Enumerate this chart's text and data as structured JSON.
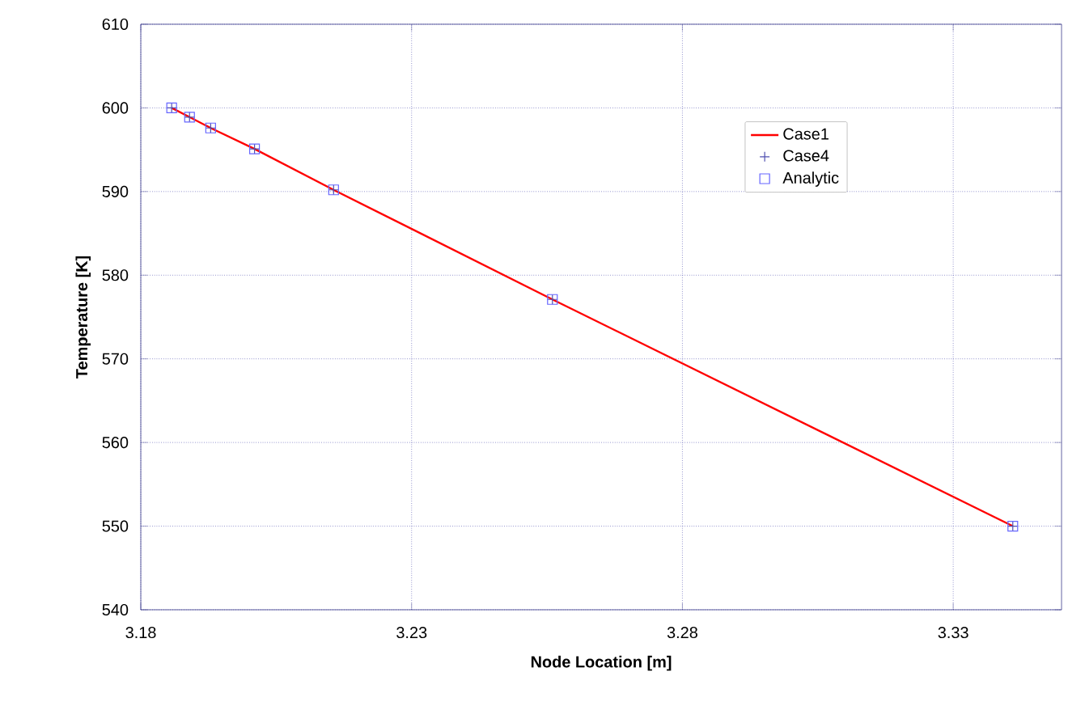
{
  "chart_data": {
    "type": "line",
    "xlabel": "Node Location [m]",
    "ylabel": "Temperature [K]",
    "x": [
      3.1857,
      3.189,
      3.1929,
      3.201,
      3.2156,
      3.256,
      3.341
    ],
    "series": [
      {
        "name": "Case1",
        "color": "#ff0000",
        "marker": "none",
        "values": [
          600,
          598.9,
          597.6,
          595.1,
          590.2,
          577.1,
          550
        ]
      },
      {
        "name": "Case4",
        "type": "scatter",
        "color": "#5050b0",
        "marker": "cross",
        "values": [
          600,
          598.9,
          597.6,
          595.1,
          590.2,
          577.1,
          550
        ]
      },
      {
        "name": "Analytic",
        "type": "scatter",
        "color": "#6666ff",
        "marker": "square",
        "values": [
          600,
          598.9,
          597.6,
          595.1,
          590.2,
          577.1,
          550
        ]
      }
    ],
    "xlim": [
      3.18,
      3.35
    ],
    "xticks": [
      3.18,
      3.23,
      3.28,
      3.33
    ],
    "ylim": [
      540,
      610
    ],
    "yticks": [
      540,
      550,
      560,
      570,
      580,
      590,
      600,
      610
    ],
    "grid": true,
    "legend": "top right"
  }
}
